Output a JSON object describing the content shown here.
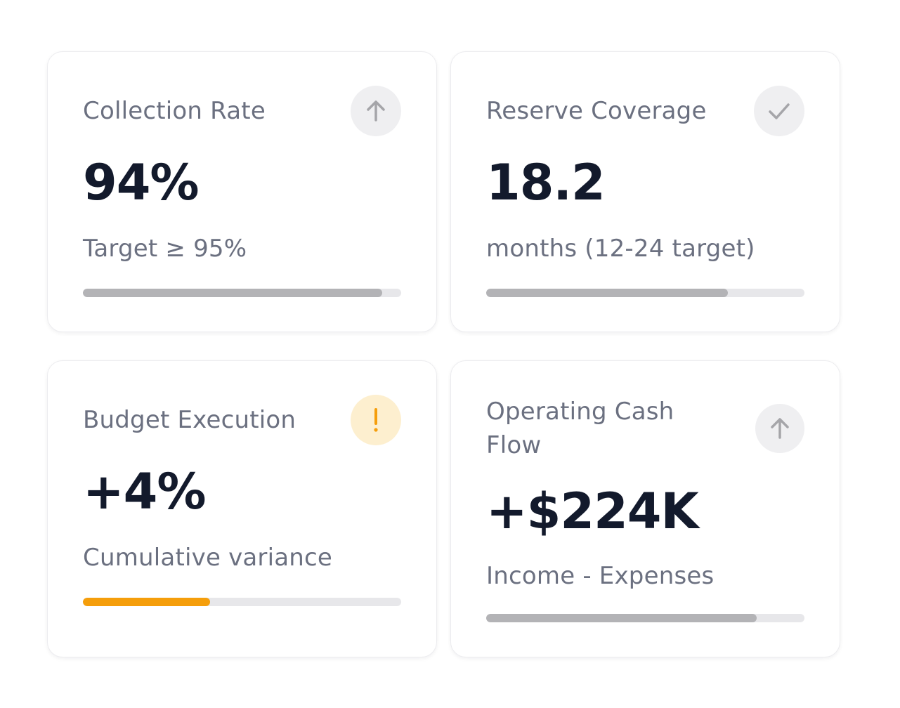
{
  "cards": [
    {
      "title": "Collection Rate",
      "icon": "arrow-up-icon",
      "value": "94%",
      "subtitle": "Target ≥ 95%",
      "progress_percent": 94,
      "bar_color": "#b3b3b6"
    },
    {
      "title": "Reserve Coverage",
      "icon": "check-icon",
      "value": "18.2",
      "subtitle": "months (12-24 target)",
      "progress_percent": 76,
      "bar_color": "#b3b3b6"
    },
    {
      "title": "Budget Execution",
      "icon": "exclamation-icon",
      "value": "+4%",
      "subtitle": "Cumulative variance",
      "progress_percent": 40,
      "bar_color": "#f59e0b"
    },
    {
      "title": "Operating Cash Flow",
      "icon": "arrow-up-icon",
      "value": "+$224K",
      "subtitle": "Income - Expenses",
      "progress_percent": 85,
      "bar_color": "#b3b3b6"
    }
  ]
}
